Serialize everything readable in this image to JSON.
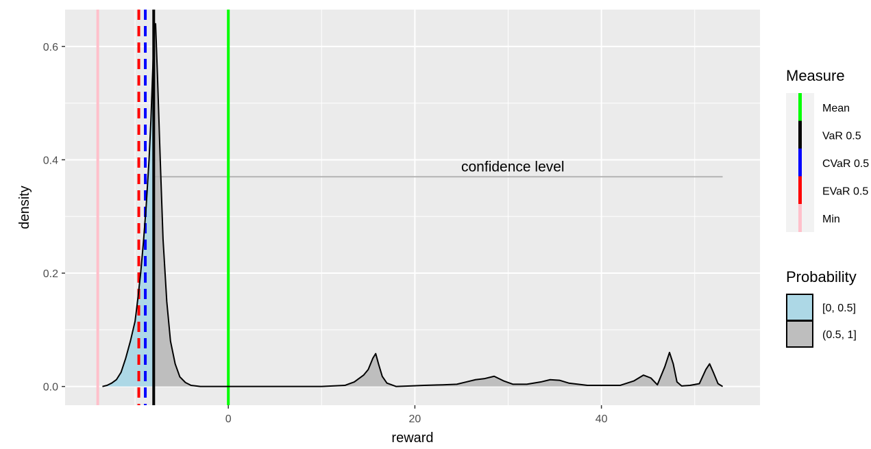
{
  "chart_data": {
    "type": "area",
    "xlabel": "reward",
    "ylabel": "density",
    "xlim": [
      -17.5,
      57
    ],
    "ylim": [
      -0.033,
      0.665
    ],
    "x_ticks": [
      0,
      20,
      40
    ],
    "x_tick_labels": [
      "0",
      "20",
      "40"
    ],
    "y_ticks": [
      0.0,
      0.2,
      0.4,
      0.6
    ],
    "y_tick_labels": [
      "0.0",
      "0.2",
      "0.4",
      "0.6"
    ],
    "grid": true,
    "density": {
      "x": [
        -13.5,
        -13.0,
        -12.5,
        -12.0,
        -11.5,
        -11.0,
        -10.5,
        -10.0,
        -9.7,
        -9.4,
        -9.1,
        -8.8,
        -8.5,
        -8.3,
        -8.1,
        -7.95,
        -7.8,
        -7.6,
        -7.3,
        -7.0,
        -6.6,
        -6.2,
        -5.7,
        -5.2,
        -4.6,
        -4.0,
        -3.0,
        0.0,
        10.0,
        12.5,
        13.5,
        14.5,
        15.0,
        15.5,
        15.8,
        16.1,
        16.5,
        17.0,
        18.0,
        19.5,
        21.0,
        23.0,
        24.5,
        25.5,
        26.5,
        27.5,
        28.5,
        29.5,
        30.5,
        32.0,
        33.5,
        34.5,
        35.5,
        36.5,
        37.5,
        38.5,
        40.0,
        42.0,
        43.5,
        44.5,
        45.3,
        46.0,
        46.8,
        47.3,
        47.7,
        48.1,
        48.6,
        49.5,
        50.5,
        51.2,
        51.6,
        52.0,
        52.5,
        53.0
      ],
      "y": [
        0.0,
        0.002,
        0.006,
        0.012,
        0.025,
        0.05,
        0.08,
        0.115,
        0.155,
        0.2,
        0.255,
        0.32,
        0.4,
        0.47,
        0.56,
        0.63,
        0.64,
        0.55,
        0.4,
        0.26,
        0.15,
        0.08,
        0.04,
        0.017,
        0.007,
        0.002,
        0.0,
        0.0,
        0.0,
        0.002,
        0.008,
        0.02,
        0.03,
        0.05,
        0.058,
        0.04,
        0.018,
        0.006,
        0.0,
        0.001,
        0.002,
        0.003,
        0.004,
        0.008,
        0.012,
        0.014,
        0.018,
        0.01,
        0.004,
        0.004,
        0.008,
        0.012,
        0.011,
        0.006,
        0.004,
        0.002,
        0.002,
        0.002,
        0.01,
        0.02,
        0.015,
        0.003,
        0.035,
        0.06,
        0.04,
        0.008,
        0.001,
        0.002,
        0.005,
        0.03,
        0.04,
        0.025,
        0.005,
        0.0
      ]
    },
    "var_threshold": -8.0,
    "measures": [
      {
        "name": "Mean",
        "x": 0.0,
        "color": "#00ff00",
        "dashed": false
      },
      {
        "name": "VaR 0.5",
        "x": -8.0,
        "color": "#000000",
        "dashed": false
      },
      {
        "name": "CVaR 0.5",
        "x": -8.9,
        "color": "#0000ff",
        "dashed": true
      },
      {
        "name": "EVaR 0.5",
        "x": -9.6,
        "color": "#ff0000",
        "dashed": true
      },
      {
        "name": "Min",
        "x": -14.0,
        "color": "#ffc0cb",
        "dashed": false
      }
    ],
    "annotation": {
      "text": "confidence level",
      "y": 0.37,
      "x_start": -8.0,
      "x_end": 53.0,
      "text_x": 30.5,
      "color": "#b3b3b3"
    },
    "legend_measure": {
      "title": "Measure",
      "entries": [
        "Mean",
        "VaR 0.5",
        "CVaR 0.5",
        "EVaR 0.5",
        "Min"
      ],
      "colors": [
        "#00ff00",
        "#000000",
        "#0000ff",
        "#ff0000",
        "#ffc0cb"
      ]
    },
    "legend_probability": {
      "title": "Probability",
      "entries": [
        "[0, 0.5]",
        "(0.5, 1]"
      ],
      "colors": [
        "#add8e6",
        "#bebebe"
      ]
    },
    "legend_placement": "right"
  }
}
